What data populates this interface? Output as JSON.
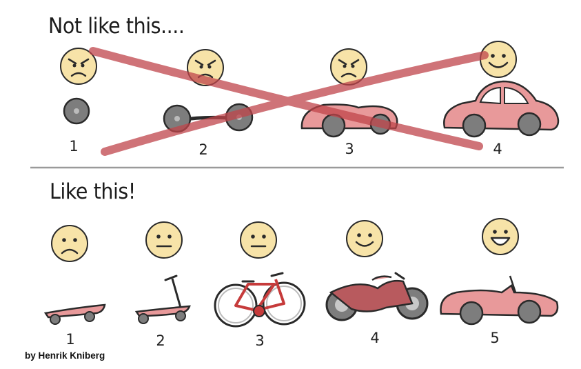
{
  "top": {
    "heading": "Not like this....",
    "steps": [
      "1",
      "2",
      "3",
      "4"
    ]
  },
  "bottom": {
    "heading": "Like this!",
    "steps": [
      "1",
      "2",
      "3",
      "4",
      "5"
    ]
  },
  "credit": "by Henrik Kniberg",
  "colors": {
    "face": "#f7e3a8",
    "car": "#e8999a",
    "wheel": "#7d7d7d",
    "cross": "#c0454b",
    "divider": "#9a9a9a"
  }
}
